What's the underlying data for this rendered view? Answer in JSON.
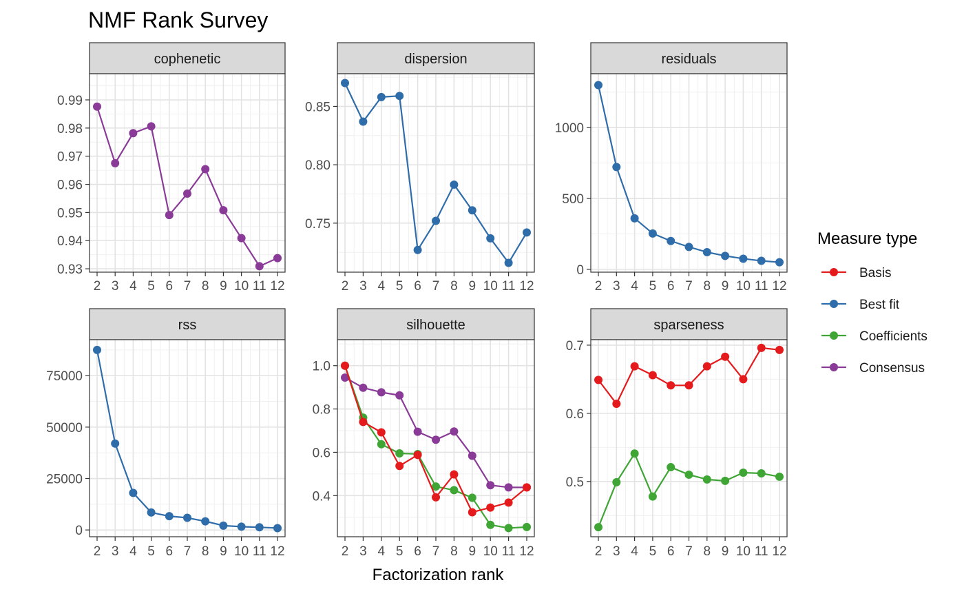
{
  "title": "NMF Rank Survey",
  "xlabel": "Factorization rank",
  "legend": {
    "title": "Measure type",
    "items": [
      {
        "label": "Basis",
        "color": "#E41A1C"
      },
      {
        "label": "Best fit",
        "color": "#2F6DAA"
      },
      {
        "label": "Coefficients",
        "color": "#3FA535"
      },
      {
        "label": "Consensus",
        "color": "#8A3A97"
      }
    ]
  },
  "chart_data": [
    {
      "type": "line",
      "panel": "cophenetic",
      "x": [
        2,
        3,
        4,
        5,
        6,
        7,
        8,
        9,
        10,
        11,
        12
      ],
      "ylim": [
        0.9288,
        0.9993
      ],
      "yticks": [
        0.93,
        0.94,
        0.95,
        0.96,
        0.97,
        0.98,
        0.99
      ],
      "ytick_labels": [
        "0.93",
        "0.94",
        "0.95",
        "0.96",
        "0.97",
        "0.98",
        "0.99"
      ],
      "series": [
        {
          "name": "Consensus",
          "color": "#8A3A97",
          "values": [
            0.9876,
            0.9675,
            0.9782,
            0.9806,
            0.9491,
            0.9567,
            0.9654,
            0.9508,
            0.9409,
            0.9309,
            0.9338
          ]
        }
      ]
    },
    {
      "type": "line",
      "panel": "dispersion",
      "x": [
        2,
        3,
        4,
        5,
        6,
        7,
        8,
        9,
        10,
        11,
        12
      ],
      "ylim": [
        0.708,
        0.878
      ],
      "yticks": [
        0.75,
        0.8,
        0.85
      ],
      "ytick_labels": [
        "0.75",
        "0.80",
        "0.85"
      ],
      "series": [
        {
          "name": "Best fit",
          "color": "#2F6DAA",
          "values": [
            0.87,
            0.837,
            0.858,
            0.859,
            0.727,
            0.752,
            0.783,
            0.761,
            0.737,
            0.716,
            0.742
          ]
        }
      ]
    },
    {
      "type": "line",
      "panel": "residuals",
      "x": [
        2,
        3,
        4,
        5,
        6,
        7,
        8,
        9,
        10,
        11,
        12
      ],
      "ylim": [
        -20,
        1380
      ],
      "yticks": [
        0,
        500,
        1000
      ],
      "ytick_labels": [
        "0",
        "500",
        "1000"
      ],
      "series": [
        {
          "name": "Best fit",
          "color": "#2F6DAA",
          "values": [
            1300,
            722,
            360,
            253,
            200,
            158,
            121,
            95,
            75,
            60,
            50
          ]
        }
      ]
    },
    {
      "type": "line",
      "panel": "rss",
      "x": [
        2,
        3,
        4,
        5,
        6,
        7,
        8,
        9,
        10,
        11,
        12
      ],
      "ylim": [
        -3300,
        92500
      ],
      "yticks": [
        0,
        25000,
        50000,
        75000
      ],
      "ytick_labels": [
        "0",
        "25000",
        "50000",
        "75000"
      ],
      "series": [
        {
          "name": "Best fit",
          "color": "#2F6DAA",
          "values": [
            87500,
            42000,
            18000,
            8500,
            6700,
            5900,
            4200,
            2100,
            1600,
            1300,
            900
          ]
        }
      ]
    },
    {
      "type": "line",
      "panel": "silhouette",
      "x": [
        2,
        3,
        4,
        5,
        6,
        7,
        8,
        9,
        10,
        11,
        12
      ],
      "ylim": [
        0.21,
        1.12
      ],
      "yticks": [
        0.4,
        0.6,
        0.8,
        1.0
      ],
      "ytick_labels": [
        "0.4",
        "0.6",
        "0.8",
        "1.0"
      ],
      "series": [
        {
          "name": "Coefficients",
          "color": "#3FA535",
          "values": [
            1.0,
            0.76,
            0.637,
            0.595,
            0.592,
            0.442,
            0.425,
            0.39,
            0.265,
            0.25,
            0.255
          ]
        },
        {
          "name": "Consensus",
          "color": "#8A3A97",
          "values": [
            0.945,
            0.898,
            0.877,
            0.863,
            0.695,
            0.658,
            0.696,
            0.584,
            0.448,
            0.438,
            0.438
          ]
        },
        {
          "name": "Basis",
          "color": "#E41A1C",
          "values": [
            1.0,
            0.74,
            0.692,
            0.537,
            0.588,
            0.392,
            0.498,
            0.323,
            0.345,
            0.368,
            0.438
          ]
        }
      ]
    },
    {
      "type": "line",
      "panel": "sparseness",
      "x": [
        2,
        3,
        4,
        5,
        6,
        7,
        8,
        9,
        10,
        11,
        12
      ],
      "ylim": [
        0.419,
        0.708
      ],
      "yticks": [
        0.5,
        0.6,
        0.7
      ],
      "ytick_labels": [
        "0.5",
        "0.6",
        "0.7"
      ],
      "series": [
        {
          "name": "Coefficients",
          "color": "#3FA535",
          "values": [
            0.433,
            0.499,
            0.541,
            0.478,
            0.521,
            0.51,
            0.503,
            0.501,
            0.513,
            0.512,
            0.507
          ]
        },
        {
          "name": "Basis",
          "color": "#E41A1C",
          "values": [
            0.649,
            0.614,
            0.669,
            0.656,
            0.641,
            0.641,
            0.669,
            0.683,
            0.65,
            0.696,
            0.693
          ]
        }
      ]
    }
  ]
}
